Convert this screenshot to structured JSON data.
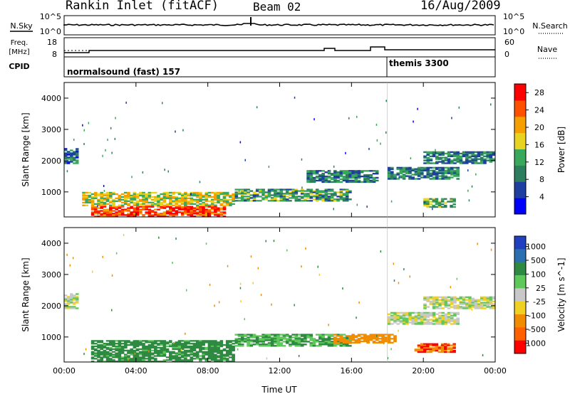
{
  "header": {
    "station": "Rankin Inlet (fitACF)",
    "beam": "Beam 02",
    "date": "16/Aug/2009"
  },
  "strip": {
    "left_top_label": "N.Sky",
    "left_mid_label": "Freq.",
    "left_mid_unit": "[MHz]",
    "cpid_label": "CPID",
    "right_top_label": "N.Search",
    "right_mid_label": "Nave",
    "nsky_ticks": [
      "10^5",
      "10^0"
    ],
    "nsearch_ticks": [
      "10^5",
      "10^0"
    ],
    "freq_ticks": [
      "18",
      "8"
    ],
    "nave_ticks": [
      "60",
      "0"
    ],
    "cpid_segments": [
      {
        "label": "normalsound (fast) 157",
        "start": "00:00"
      },
      {
        "label": "themis 3300",
        "start": "18:00"
      }
    ]
  },
  "colors": {
    "power_scale": [
      "#0000ff",
      "#1f3fa0",
      "#2e7d5f",
      "#3aa85a",
      "#e8d420",
      "#f5a000",
      "#ff5000",
      "#ff0000"
    ],
    "velocity_scale": [
      "#2040c0",
      "#2a6fb0",
      "#2e8a40",
      "#5fc85a",
      "#c8c8c8",
      "#f0d020",
      "#f08c00",
      "#ff6000",
      "#ff0000"
    ]
  },
  "chart_data": [
    {
      "type": "heatmap",
      "title": "",
      "xlabel": "",
      "ylabel": "Slant Range [km]",
      "xlim": [
        "00:00",
        "24:00"
      ],
      "ylim": [
        200,
        4500
      ],
      "x_ticks": [
        "00:00",
        "04:00",
        "08:00",
        "12:00",
        "16:00",
        "20:00",
        "00:00"
      ],
      "y_ticks": [
        1000,
        2000,
        3000,
        4000
      ],
      "colorbar": {
        "label": "Power [dB]",
        "ticks": [
          4,
          8,
          12,
          16,
          20,
          24,
          28
        ],
        "range": [
          0,
          30
        ]
      },
      "regions": [
        {
          "t_start": 0.0,
          "t_end": 0.8,
          "r_start": 1900,
          "r_end": 2400,
          "value": 8
        },
        {
          "t_start": 1.5,
          "t_end": 9.0,
          "r_start": 200,
          "r_end": 550,
          "value": 28
        },
        {
          "t_start": 1.0,
          "t_end": 9.5,
          "r_start": 550,
          "r_end": 1000,
          "value": 18
        },
        {
          "t_start": 9.5,
          "t_end": 16.0,
          "r_start": 700,
          "r_end": 1100,
          "value": 12
        },
        {
          "t_start": 13.5,
          "t_end": 17.5,
          "r_start": 1300,
          "r_end": 1700,
          "value": 10
        },
        {
          "t_start": 18.0,
          "t_end": 22.0,
          "r_start": 1400,
          "r_end": 1800,
          "value": 10
        },
        {
          "t_start": 20.0,
          "t_end": 24.0,
          "r_start": 1900,
          "r_end": 2300,
          "value": 10
        },
        {
          "t_start": 20.0,
          "t_end": 21.8,
          "r_start": 500,
          "r_end": 800,
          "value": 14
        }
      ]
    },
    {
      "type": "heatmap",
      "title": "",
      "xlabel": "Time UT",
      "ylabel": "Slant Range [km]",
      "xlim": [
        "00:00",
        "24:00"
      ],
      "ylim": [
        200,
        4500
      ],
      "x_ticks": [
        "00:00",
        "04:00",
        "08:00",
        "12:00",
        "16:00",
        "20:00",
        "00:00"
      ],
      "y_ticks": [
        1000,
        2000,
        3000,
        4000
      ],
      "colorbar": {
        "label": "Velocity [m s^-1]",
        "ticks": [
          1000,
          500,
          100,
          25,
          -25,
          -100,
          -500,
          -1000
        ]
      },
      "regions": [
        {
          "t_start": 0.0,
          "t_end": 0.8,
          "r_start": 1900,
          "r_end": 2400,
          "value": 0
        },
        {
          "t_start": 1.5,
          "t_end": 9.5,
          "r_start": 200,
          "r_end": 900,
          "value": 150
        },
        {
          "t_start": 9.5,
          "t_end": 16.0,
          "r_start": 700,
          "r_end": 1100,
          "value": 100
        },
        {
          "t_start": 15.0,
          "t_end": 18.5,
          "r_start": 800,
          "r_end": 1100,
          "value": -300
        },
        {
          "t_start": 18.0,
          "t_end": 22.0,
          "r_start": 1400,
          "r_end": 1800,
          "value": 0
        },
        {
          "t_start": 20.0,
          "t_end": 24.0,
          "r_start": 1900,
          "r_end": 2300,
          "value": 0
        },
        {
          "t_start": 19.5,
          "t_end": 21.8,
          "r_start": 500,
          "r_end": 800,
          "value": -500
        }
      ]
    }
  ]
}
